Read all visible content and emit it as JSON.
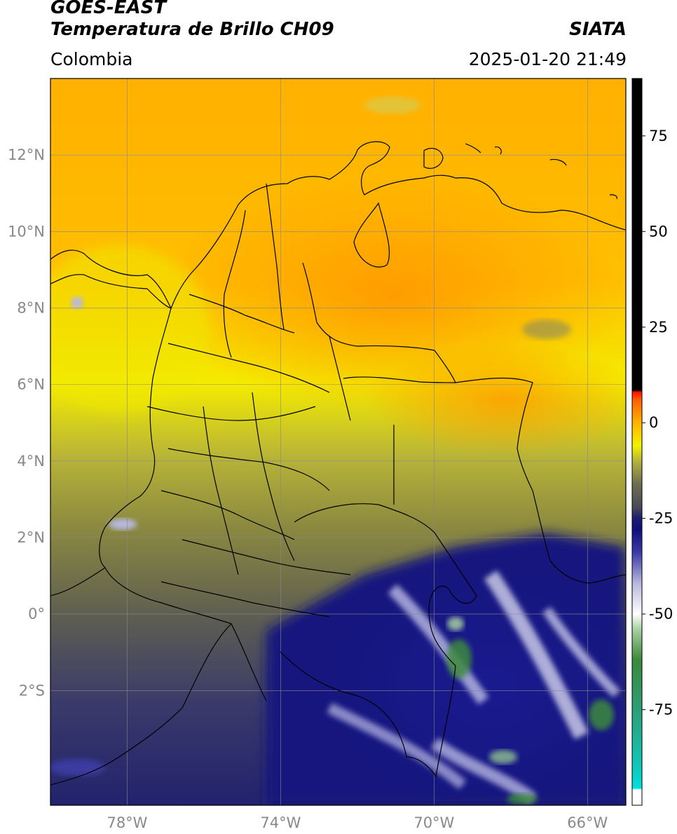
{
  "header": {
    "satellite": "GOES-EAST",
    "product": "Temperatura de Brillo CH09",
    "region": "Colombia",
    "organization": "SIATA",
    "datetime": "2025-01-20 21:49"
  },
  "map": {
    "lon_range": [
      -80,
      -65
    ],
    "lat_range": [
      -5,
      14
    ],
    "lon_ticks": [
      {
        "value": -78,
        "label": "78°W"
      },
      {
        "value": -74,
        "label": "74°W"
      },
      {
        "value": -70,
        "label": "70°W"
      },
      {
        "value": -66,
        "label": "66°W"
      }
    ],
    "lat_ticks": [
      {
        "value": 12,
        "label": "12°N"
      },
      {
        "value": 10,
        "label": "10°N"
      },
      {
        "value": 8,
        "label": "8°N"
      },
      {
        "value": 6,
        "label": "6°N"
      },
      {
        "value": 4,
        "label": "4°N"
      },
      {
        "value": 2,
        "label": "2°N"
      },
      {
        "value": 0,
        "label": "0°"
      },
      {
        "value": -2,
        "label": "2°S"
      }
    ],
    "grid": true
  },
  "colorbar": {
    "range": [
      -100,
      90
    ],
    "ticks": [
      {
        "value": 75,
        "label": "75"
      },
      {
        "value": 50,
        "label": "50"
      },
      {
        "value": 25,
        "label": "25"
      },
      {
        "value": 0,
        "label": "0"
      },
      {
        "value": -25,
        "label": "-25"
      },
      {
        "value": -50,
        "label": "-50"
      },
      {
        "value": -75,
        "label": "-75"
      }
    ],
    "stops": [
      {
        "value": -100,
        "color": "#ffffff"
      },
      {
        "value": -96,
        "color": "#ffffff"
      },
      {
        "value": -95.5,
        "color": "#00e0e0"
      },
      {
        "value": -90,
        "color": "#10c8b8"
      },
      {
        "value": -75,
        "color": "#2e9e78"
      },
      {
        "value": -62,
        "color": "#3a8a3a"
      },
      {
        "value": -54,
        "color": "#a8d0a0"
      },
      {
        "value": -50,
        "color": "#ffffff"
      },
      {
        "value": -42,
        "color": "#b8b8dc"
      },
      {
        "value": -34,
        "color": "#3c3ca8"
      },
      {
        "value": -28,
        "color": "#10107a"
      },
      {
        "value": -25,
        "color": "#1c1c6e"
      },
      {
        "value": -22,
        "color": "#4a4a58"
      },
      {
        "value": -16,
        "color": "#6e6e50"
      },
      {
        "value": -10,
        "color": "#b4b43c"
      },
      {
        "value": -6,
        "color": "#f2f200"
      },
      {
        "value": 0,
        "color": "#ffb400"
      },
      {
        "value": 6,
        "color": "#ff6000"
      },
      {
        "value": 8,
        "color": "#ff1000"
      },
      {
        "value": 8.5,
        "color": "#000000"
      },
      {
        "value": 90,
        "color": "#000000"
      }
    ]
  }
}
